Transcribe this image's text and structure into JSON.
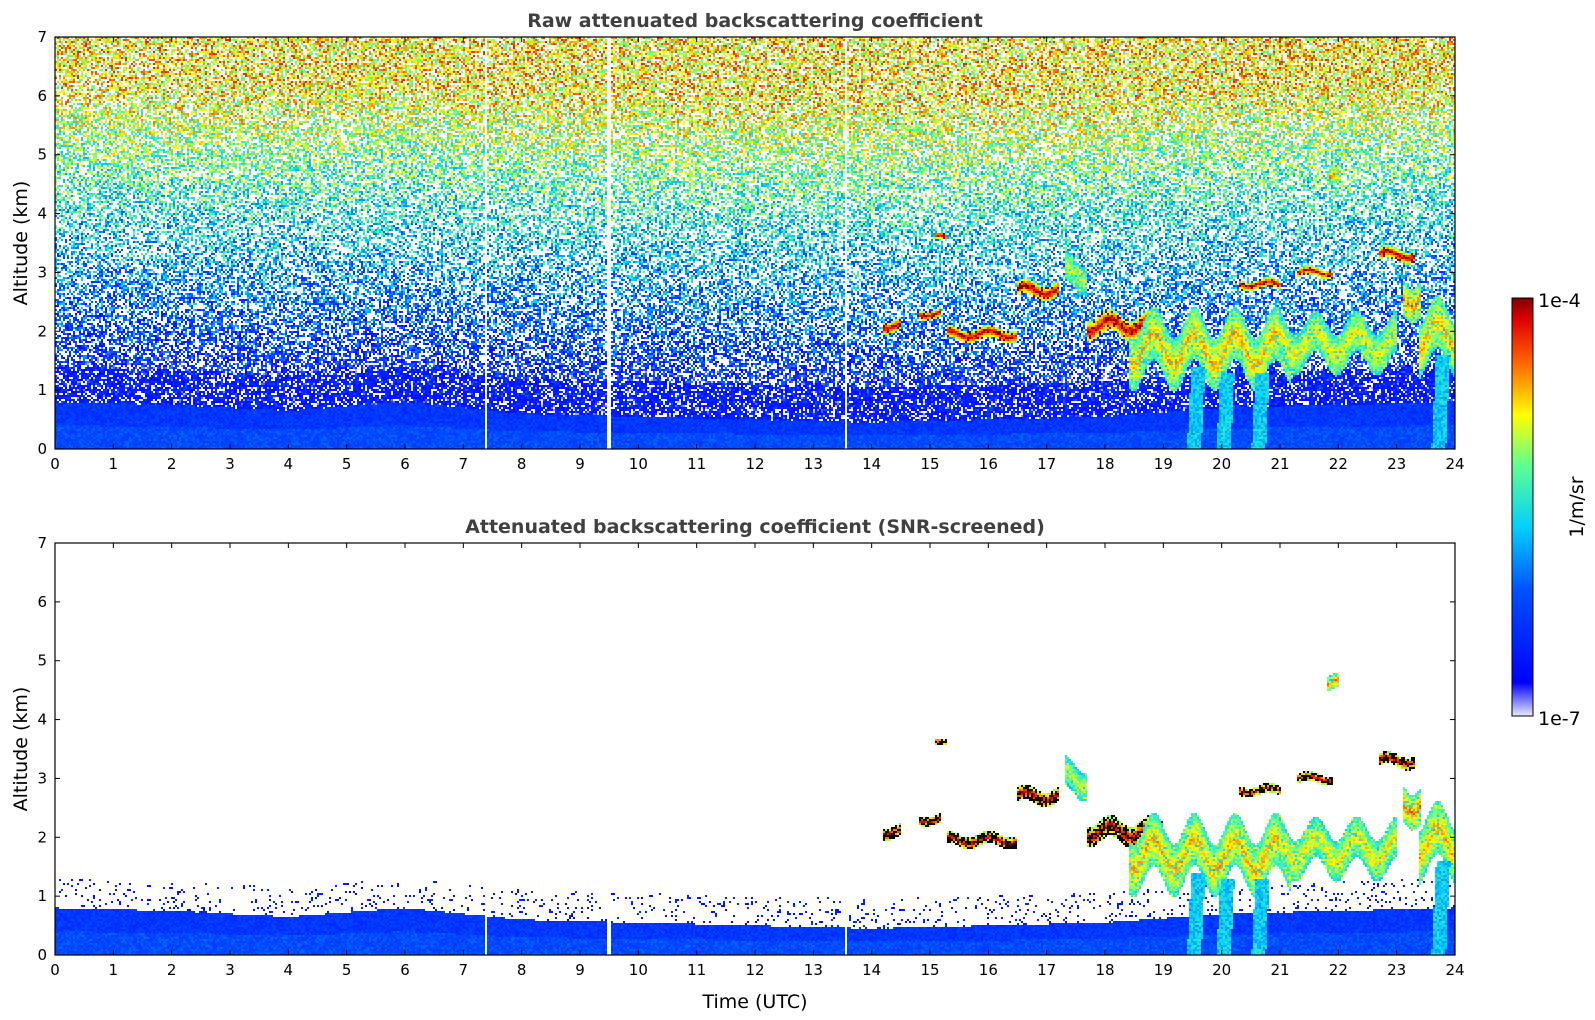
{
  "chart_data": [
    {
      "type": "heatmap",
      "title": "Raw attenuated backscattering coefficient",
      "xlabel": "",
      "ylabel": "Altitude (km)",
      "xlim": [
        0,
        24
      ],
      "ylim": [
        0,
        7
      ],
      "x_ticks": [
        0,
        1,
        2,
        3,
        4,
        5,
        6,
        7,
        8,
        9,
        10,
        11,
        12,
        13,
        14,
        15,
        16,
        17,
        18,
        19,
        20,
        21,
        22,
        23,
        24
      ],
      "y_ticks": [
        0,
        1,
        2,
        3,
        4,
        5,
        6,
        7
      ],
      "gaps_utc": [
        7.4,
        9.5,
        13.55
      ],
      "noise": "full-column noise; intensity increases with altitude above ~1 km",
      "boundary_layer": [
        {
          "t": 0,
          "top_km": 0.8
        },
        {
          "t": 2,
          "top_km": 0.75
        },
        {
          "t": 4,
          "top_km": 0.65
        },
        {
          "t": 6,
          "top_km": 0.8
        },
        {
          "t": 8,
          "top_km": 0.6
        },
        {
          "t": 10,
          "top_km": 0.55
        },
        {
          "t": 12,
          "top_km": 0.5
        },
        {
          "t": 14,
          "top_km": 0.45
        },
        {
          "t": 16,
          "top_km": 0.5
        },
        {
          "t": 18,
          "top_km": 0.55
        },
        {
          "t": 20,
          "top_km": 0.7
        },
        {
          "t": 22,
          "top_km": 0.75
        },
        {
          "t": 24,
          "top_km": 0.8
        }
      ],
      "cloud_layers": [
        {
          "t0": 14.2,
          "t1": 14.5,
          "alt_km": 2.1,
          "thick_km": 0.2,
          "level": 0.98
        },
        {
          "t0": 14.8,
          "t1": 15.2,
          "alt_km": 2.3,
          "thick_km": 0.15,
          "level": 0.98
        },
        {
          "t0": 15.3,
          "t1": 16.5,
          "alt_km": 1.95,
          "thick_km": 0.2,
          "level": 0.98
        },
        {
          "t0": 16.5,
          "t1": 17.2,
          "alt_km": 2.7,
          "thick_km": 0.25,
          "level": 0.98
        },
        {
          "t0": 15.1,
          "t1": 15.3,
          "alt_km": 3.6,
          "thick_km": 0.1,
          "level": 0.98
        },
        {
          "t0": 17.7,
          "t1": 19.0,
          "alt_km": 2.1,
          "thick_km": 0.35,
          "level": 0.97
        },
        {
          "t0": 18.4,
          "t1": 21.2,
          "alt_km": 1.7,
          "thick_km": 0.9,
          "level": 0.8
        },
        {
          "t0": 20.3,
          "t1": 21.0,
          "alt_km": 2.8,
          "thick_km": 0.15,
          "level": 0.95
        },
        {
          "t0": 21.0,
          "t1": 23.0,
          "alt_km": 1.8,
          "thick_km": 0.7,
          "level": 0.75
        },
        {
          "t0": 21.3,
          "t1": 21.9,
          "alt_km": 3.0,
          "thick_km": 0.15,
          "level": 0.95
        },
        {
          "t0": 21.8,
          "t1": 22.0,
          "alt_km": 4.6,
          "thick_km": 0.25,
          "level": 0.85
        },
        {
          "t0": 22.7,
          "t1": 23.3,
          "alt_km": 3.3,
          "thick_km": 0.2,
          "level": 0.97
        },
        {
          "t0": 23.1,
          "t1": 23.4,
          "alt_km": 2.6,
          "thick_km": 0.6,
          "level": 0.85
        },
        {
          "t0": 23.4,
          "t1": 24.0,
          "alt_km": 1.9,
          "thick_km": 0.9,
          "level": 0.8
        },
        {
          "t0": 17.3,
          "t1": 17.7,
          "alt_km": 3.0,
          "thick_km": 0.5,
          "level": 0.7
        }
      ],
      "precip_streaks": [
        {
          "t": 19.6,
          "from_km": 0,
          "to_km": 1.4
        },
        {
          "t": 20.1,
          "from_km": 0,
          "to_km": 1.3
        },
        {
          "t": 20.7,
          "from_km": 0,
          "to_km": 1.3
        },
        {
          "t": 23.8,
          "from_km": 0,
          "to_km": 1.6
        }
      ]
    },
    {
      "type": "heatmap",
      "title": "Attenuated backscattering coefficient (SNR-screened)",
      "xlabel": "Time (UTC)",
      "ylabel": "Altitude (km)",
      "xlim": [
        0,
        24
      ],
      "ylim": [
        0,
        7
      ],
      "x_ticks": [
        0,
        1,
        2,
        3,
        4,
        5,
        6,
        7,
        8,
        9,
        10,
        11,
        12,
        13,
        14,
        15,
        16,
        17,
        18,
        19,
        20,
        21,
        22,
        23,
        24
      ],
      "y_ticks": [
        0,
        1,
        2,
        3,
        4,
        5,
        6,
        7
      ],
      "gaps_utc": [
        7.4,
        9.5,
        13.55
      ],
      "noise": "screened: noise removed above boundary layer",
      "same_features_as": "raw panel"
    }
  ],
  "colorbar": {
    "label": "1/m/sr",
    "max_label": "1e-4",
    "min_label": "1e-7",
    "colormap": "jet"
  }
}
